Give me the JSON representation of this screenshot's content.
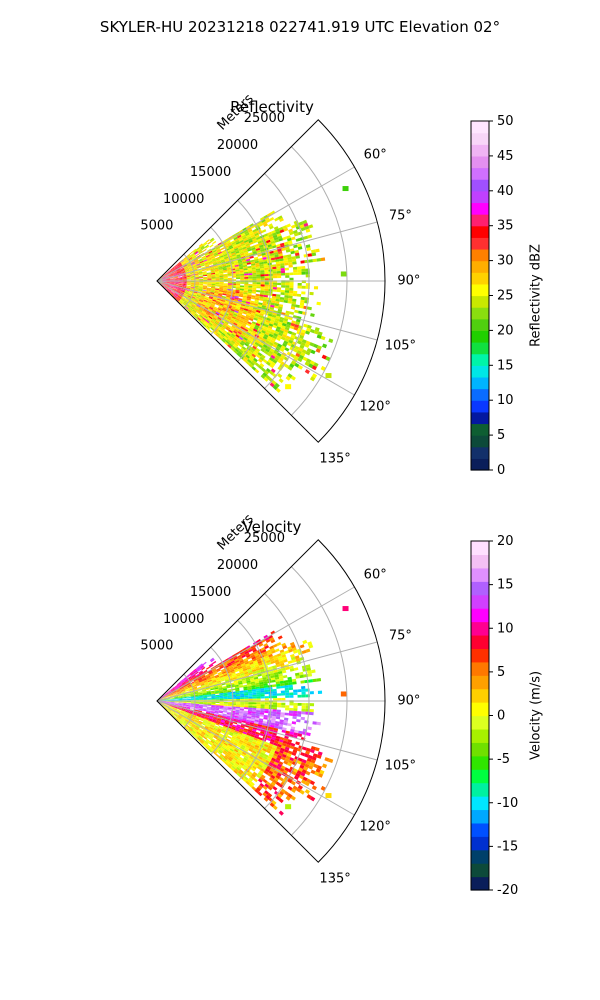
{
  "figure": {
    "suptitle": "SKYLER-HU  20231218  022741.919 UTC Elevation 02°"
  },
  "colors": {
    "reflectivity_scale": [
      "#0a1e5a",
      "#12306a",
      "#0d4a3a",
      "#0e5e32",
      "#0418a0",
      "#0a38ff",
      "#0a6cff",
      "#00b4ff",
      "#00e6e6",
      "#00f5a8",
      "#10e040",
      "#20d000",
      "#50d010",
      "#8ade10",
      "#c8e800",
      "#ffff00",
      "#ffd200",
      "#ffae00",
      "#ff8000",
      "#ff3030",
      "#ff0000",
      "#ff2070",
      "#ff00ff",
      "#c040ff",
      "#a050ff",
      "#d070ff",
      "#e490f0",
      "#f0b4f4",
      "#f8d6f8",
      "#ffe6ff"
    ],
    "velocity_scale": [
      "#0a1e5a",
      "#0d4a3a",
      "#00406a",
      "#0030d0",
      "#0050ff",
      "#00a8ff",
      "#00e6ff",
      "#00f0a0",
      "#00ff40",
      "#30e600",
      "#70e000",
      "#a8f000",
      "#dcff20",
      "#ffff00",
      "#ffd000",
      "#ffa000",
      "#ff7800",
      "#ff3000",
      "#ff0030",
      "#ff0090",
      "#ff00ff",
      "#d040ff",
      "#b060ff",
      "#e090ff",
      "#f4c0f4",
      "#ffe0ff"
    ]
  },
  "chart_data": [
    {
      "type": "heatmap",
      "title": "Reflectivity",
      "projection": "polar sector",
      "range_label": "Meters",
      "range_ticks": [
        5000,
        10000,
        15000,
        20000,
        25000
      ],
      "range_tick_labels": [
        "5000",
        "10000",
        "15000",
        "20000",
        "25000"
      ],
      "range_max": 30000,
      "azimuth_range_deg": [
        45,
        135
      ],
      "azimuth_ticks_deg": [
        60,
        75,
        90,
        105,
        120,
        135
      ],
      "azimuth_tick_labels": [
        "60°",
        "75°",
        "90°",
        "105°",
        "120°",
        "135°"
      ],
      "grid": true,
      "colorbar": {
        "label": "Reflectivity dBZ",
        "range": [
          0,
          50
        ],
        "ticks": [
          0,
          5,
          10,
          15,
          20,
          25,
          30,
          35,
          40,
          45,
          50
        ],
        "tick_labels": [
          "0",
          "5",
          "10",
          "15",
          "20",
          "25",
          "30",
          "35",
          "40",
          "45",
          "50"
        ]
      }
    },
    {
      "type": "heatmap",
      "title": "Velocity",
      "projection": "polar sector",
      "range_label": "Meters",
      "range_ticks": [
        5000,
        10000,
        15000,
        20000,
        25000
      ],
      "range_tick_labels": [
        "5000",
        "10000",
        "15000",
        "20000",
        "25000"
      ],
      "range_max": 30000,
      "azimuth_range_deg": [
        45,
        135
      ],
      "azimuth_ticks_deg": [
        60,
        75,
        90,
        105,
        120,
        135
      ],
      "azimuth_tick_labels": [
        "60°",
        "75°",
        "90°",
        "105°",
        "120°",
        "135°"
      ],
      "grid": true,
      "colorbar": {
        "label": "Velocity (m/s)",
        "range": [
          -20,
          20
        ],
        "ticks": [
          -20,
          -15,
          -10,
          -5,
          0,
          5,
          10,
          15,
          20
        ],
        "tick_labels": [
          "-20",
          "-15",
          "-10",
          "-5",
          "0",
          "5",
          "10",
          "15",
          "20"
        ]
      }
    }
  ]
}
